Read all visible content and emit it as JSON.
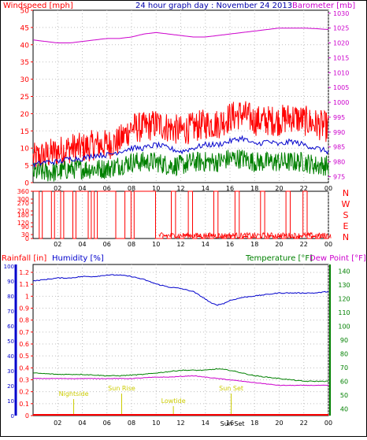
{
  "header": {
    "title": "24 hour graph day : November 24 2013",
    "left_label": "Windspeed [mph]",
    "right_label": "Barometer [mb]"
  },
  "colors": {
    "wind": "#ff0000",
    "gust": "#ff0000",
    "avg": "#0000cc",
    "green": "#008000",
    "baro": "#cc00cc",
    "humidity": "#0000cc",
    "temp": "#008000",
    "dew": "#cc00cc",
    "rain": "#ff0000",
    "events": "#cccc00",
    "frame": "#000000"
  },
  "chart_data": [
    {
      "type": "line",
      "title": "24 hour graph day : November 24 2013",
      "x_ticks": [
        "02",
        "04",
        "06",
        "08",
        "10",
        "12",
        "14",
        "16",
        "18",
        "20",
        "22",
        "00"
      ],
      "left_axis": {
        "label": "Windspeed [mph]",
        "ticks": [
          0,
          5,
          10,
          15,
          20,
          25,
          30,
          35,
          40,
          45,
          50
        ],
        "ylim": [
          0,
          50
        ]
      },
      "right_axis": {
        "label": "Barometer [mb]",
        "ticks": [
          975,
          980,
          985,
          990,
          995,
          1000,
          1005,
          1010,
          1015,
          1020,
          1025,
          1030
        ],
        "ylim": [
          973,
          1031
        ]
      },
      "series": [
        {
          "name": "Windspeed [mph]",
          "color": "red",
          "x": [
            0,
            1,
            2,
            3,
            4,
            5,
            6,
            7,
            8,
            9,
            10,
            11,
            12,
            13,
            14,
            15,
            16,
            17,
            18,
            19,
            20,
            21,
            22,
            23,
            24
          ],
          "values": [
            7,
            8,
            9,
            10,
            10,
            11,
            11,
            12,
            16,
            16,
            17,
            16,
            15,
            16,
            17,
            17,
            19,
            20,
            18,
            18,
            18,
            19,
            18,
            17,
            16
          ]
        },
        {
          "name": "Barometer [mb]",
          "color": "magenta",
          "x": [
            0,
            1,
            2,
            3,
            4,
            5,
            6,
            7,
            8,
            9,
            10,
            11,
            12,
            13,
            14,
            15,
            16,
            17,
            18,
            19,
            20,
            21,
            22,
            23,
            24
          ],
          "values": [
            1021,
            1020.5,
            1020,
            1020,
            1020.5,
            1021,
            1021.5,
            1021.5,
            1022,
            1023,
            1023.5,
            1023,
            1022.5,
            1022,
            1022,
            1022.5,
            1023,
            1023.5,
            1024,
            1024.5,
            1025,
            1025,
            1025,
            1024.8,
            1024.5
          ]
        },
        {
          "color": "blue",
          "x": [
            0,
            1,
            2,
            3,
            4,
            5,
            6,
            7,
            8,
            9,
            10,
            11,
            12,
            13,
            14,
            15,
            16,
            17,
            18,
            19,
            20,
            21,
            22,
            23,
            24
          ],
          "values": [
            5,
            6,
            6,
            7,
            7,
            8,
            8,
            9,
            10,
            10,
            11,
            10,
            9,
            10,
            11,
            11,
            12,
            13,
            11,
            12,
            11,
            12,
            11,
            10,
            9
          ]
        },
        {
          "color": "green",
          "x": [
            0,
            1,
            2,
            3,
            4,
            5,
            6,
            7,
            8,
            9,
            10,
            11,
            12,
            13,
            14,
            15,
            16,
            17,
            18,
            19,
            20,
            21,
            22,
            23,
            24
          ],
          "values": [
            3,
            3,
            3,
            4,
            4,
            4,
            4,
            5,
            6,
            6,
            6,
            5,
            5,
            6,
            6,
            6,
            7,
            7,
            6,
            6,
            6,
            6,
            6,
            5,
            5
          ]
        }
      ]
    },
    {
      "type": "line",
      "x_ticks": [
        "02",
        "04",
        "06",
        "08",
        "10",
        "12",
        "14",
        "16",
        "18",
        "20",
        "22",
        "00"
      ],
      "left_axis": {
        "ticks": [
          0,
          30,
          90,
          120,
          180,
          210,
          270,
          300,
          360
        ],
        "ylim": [
          0,
          360
        ]
      },
      "right_labels": [
        "N",
        "W",
        "S",
        "E",
        "N"
      ],
      "series": [
        {
          "color": "red",
          "segments": [
            {
              "from": 0,
              "to": 10.2,
              "states": [
                360,
                360,
                0,
                360,
                360,
                360,
                0,
                360,
                360,
                0,
                360,
                360,
                360,
                0,
                360,
                360,
                360,
                360,
                0,
                360,
                0,
                360,
                360,
                360,
                360,
                360,
                360,
                0,
                0,
                0,
                360,
                360,
                0,
                360,
                360,
                360,
                360,
                360,
                360,
                360,
                0
              ]
            },
            {
              "from": 10.2,
              "to": 24,
              "states": [
                0,
                20,
                0,
                360,
                10,
                0,
                30,
                360,
                0,
                15,
                0,
                20,
                0,
                360,
                10,
                0,
                25,
                0,
                360,
                0,
                15,
                0,
                10,
                0,
                360,
                0,
                20,
                0,
                15,
                0,
                360,
                10,
                0,
                20,
                360,
                0,
                15,
                0,
                10,
                0
              ]
            }
          ]
        }
      ]
    },
    {
      "type": "line",
      "x_ticks": [
        "02",
        "04",
        "06",
        "08",
        "10",
        "12",
        "14",
        "16",
        "18",
        "20",
        "22",
        "00"
      ],
      "left_axis": {
        "label": "Rainfall [in]",
        "ticks": [
          0,
          0.1,
          0.2,
          0.3,
          0.4,
          0.5,
          0.6,
          0.7,
          0.8,
          0.9,
          1,
          1.1,
          1.2
        ],
        "ylim": [
          0,
          1.2
        ]
      },
      "left2_axis": {
        "label": "Humidity [%]",
        "ticks": [
          0,
          10,
          20,
          30,
          40,
          50,
          60,
          70,
          80,
          90,
          100
        ],
        "ylim": [
          0,
          100
        ]
      },
      "right_axis": {
        "label": "Temperature [°F]",
        "ticks": [
          40,
          50,
          60,
          70,
          80,
          90,
          100,
          110,
          120,
          130,
          140
        ],
        "ylim": [
          35,
          145
        ]
      },
      "right_label_2": "Dew Point [°F]",
      "annotations": [
        "Nightside",
        "Sun Rise",
        "Lowtide",
        "Sun Set",
        "Sun Set"
      ],
      "series": [
        {
          "name": "Humidity [%]",
          "color": "blue",
          "x": [
            0,
            1,
            2,
            3,
            4,
            5,
            6,
            7,
            8,
            9,
            10,
            11,
            12,
            13,
            14,
            14.5,
            15,
            15.5,
            16,
            17,
            18,
            19,
            20,
            21,
            22,
            23,
            24
          ],
          "values": [
            90,
            91,
            92,
            92,
            93,
            93,
            94,
            94,
            93,
            91,
            88,
            86,
            85,
            83,
            78,
            75,
            74,
            75,
            77,
            79,
            80,
            81,
            82,
            82,
            82,
            82,
            83
          ]
        },
        {
          "name": "Temperature [°F]",
          "color": "green",
          "x": [
            0,
            1,
            2,
            3,
            4,
            5,
            6,
            7,
            8,
            9,
            10,
            11,
            12,
            13,
            14,
            15,
            16,
            17,
            18,
            19,
            20,
            21,
            22,
            23,
            24
          ],
          "values": [
            66,
            65.5,
            65,
            65,
            65,
            64.5,
            64,
            64,
            64.5,
            65,
            66,
            67,
            68,
            68,
            68,
            69,
            68,
            66,
            64,
            63,
            62,
            61,
            60,
            60,
            60
          ]
        },
        {
          "name": "Dew Point [°F]",
          "color": "magenta",
          "x": [
            0,
            1,
            2,
            3,
            4,
            5,
            6,
            7,
            8,
            9,
            10,
            11,
            12,
            13,
            14,
            15,
            16,
            17,
            18,
            19,
            20,
            21,
            22,
            23,
            24
          ],
          "values": [
            62,
            62,
            62,
            62,
            62,
            62,
            62,
            62,
            62,
            62.5,
            63,
            63,
            63.5,
            64,
            63,
            62,
            61,
            60,
            59,
            58,
            57,
            57,
            57,
            57,
            57
          ]
        },
        {
          "name": "Rainfall [in]",
          "color": "red",
          "x": [
            0,
            24
          ],
          "values": [
            0,
            0
          ]
        }
      ]
    }
  ]
}
